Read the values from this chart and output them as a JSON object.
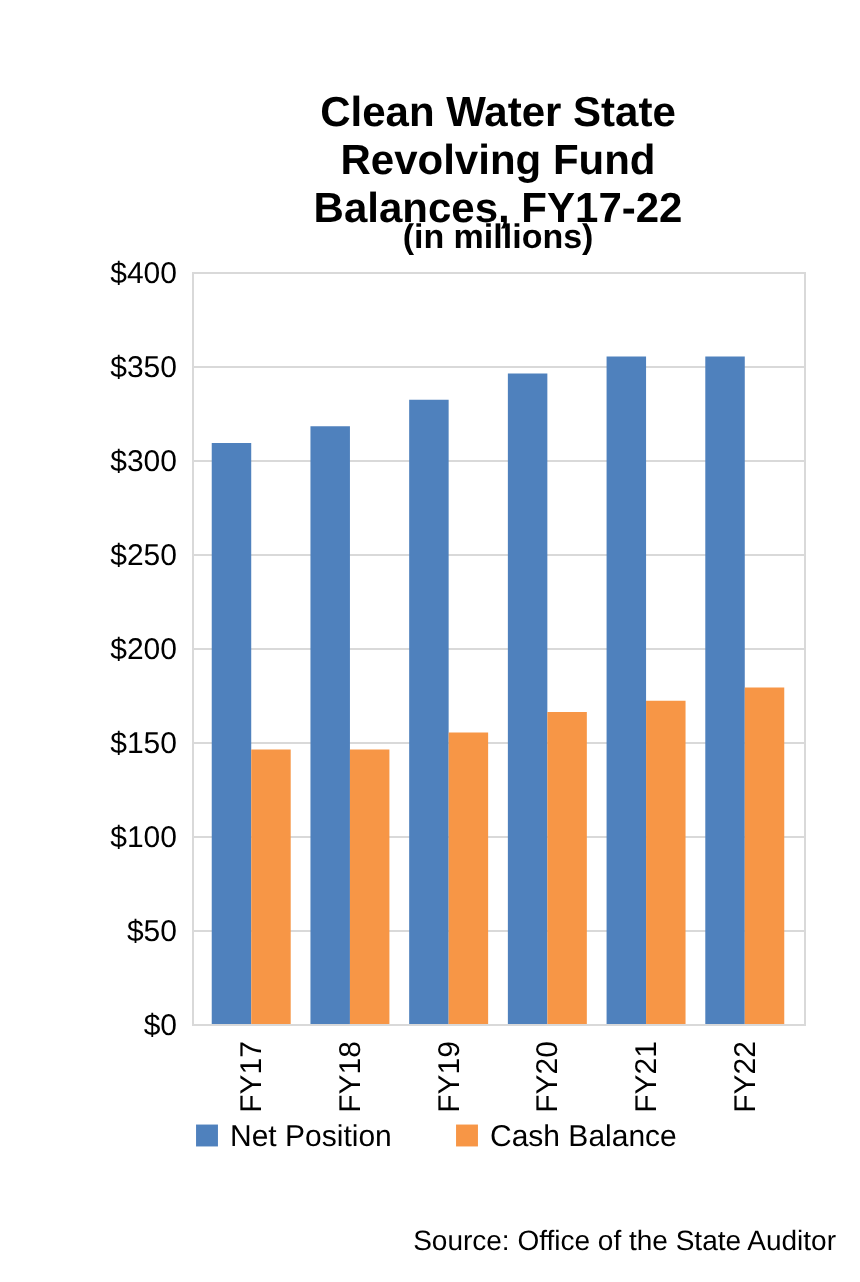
{
  "chart_data": {
    "type": "bar",
    "title": "Clean Water State Revolving Fund Balances, FY17-22",
    "subtitle": "(in millions)",
    "categories": [
      "FY17",
      "FY18",
      "FY19",
      "FY20",
      "FY21",
      "FY22"
    ],
    "series": [
      {
        "name": "Net Position",
        "color": "#4f81bd",
        "values": [
          309,
          318,
          332,
          346,
          355,
          355
        ]
      },
      {
        "name": "Cash Balance",
        "color": "#f79646",
        "values": [
          146,
          146,
          155,
          166,
          172,
          179
        ]
      }
    ],
    "ylim": [
      0,
      400
    ],
    "yticks": [
      {
        "value": 0,
        "label": "$0"
      },
      {
        "value": 50,
        "label": "$50"
      },
      {
        "value": 100,
        "label": "$100"
      },
      {
        "value": 150,
        "label": "$150"
      },
      {
        "value": 200,
        "label": "$200"
      },
      {
        "value": 250,
        "label": "$250"
      },
      {
        "value": 300,
        "label": "$300"
      },
      {
        "value": 350,
        "label": "$350"
      },
      {
        "value": 400,
        "label": "$400"
      }
    ],
    "grid": "y",
    "legend": "bottom",
    "annotations": [
      "Source: Office of the State Auditor"
    ]
  }
}
